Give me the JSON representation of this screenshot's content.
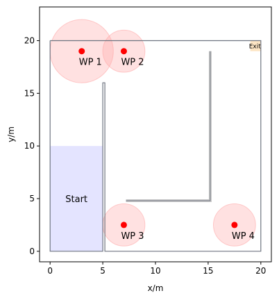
{
  "chart_data": {
    "type": "scatter",
    "xlabel": "x/m",
    "ylabel": "y/m",
    "xlim": [
      -1,
      21
    ],
    "ylim": [
      -1,
      23.2
    ],
    "xticks": [
      0,
      5,
      10,
      15,
      20
    ],
    "yticks": [
      0,
      5,
      10,
      15,
      20
    ],
    "xtick_labels": [
      "0",
      "5",
      "10",
      "15",
      "20"
    ],
    "ytick_labels": [
      "0",
      "5",
      "10",
      "15",
      "20"
    ],
    "grid": false,
    "waypoints": [
      {
        "label": "WP 1",
        "x": 3,
        "y": 19,
        "radius": 3
      },
      {
        "label": "WP 2",
        "x": 7,
        "y": 19,
        "radius": 2
      },
      {
        "label": "WP 3",
        "x": 7,
        "y": 2.5,
        "radius": 2
      },
      {
        "label": "WP 4",
        "x": 17.5,
        "y": 2.5,
        "radius": 2
      }
    ],
    "start_zone": {
      "label": "Start",
      "x0": 0,
      "y0": 0,
      "x1": 5,
      "y1": 10,
      "label_x": 2.5,
      "label_y": 5
    },
    "exit_zone": {
      "label": "Exit",
      "x0": 19,
      "y0": 19,
      "x1": 20,
      "y1": 20
    },
    "outer_wall": [
      [
        0,
        20
      ],
      [
        0,
        0
      ],
      [
        5,
        0
      ],
      [
        5,
        16
      ],
      [
        5.2,
        16
      ],
      [
        5.2,
        0
      ],
      [
        20,
        0
      ],
      [
        20,
        20
      ],
      [
        0,
        20
      ]
    ],
    "inner_wall": [
      [
        7.2,
        4.8
      ],
      [
        15.2,
        4.8
      ],
      [
        15.2,
        19
      ]
    ],
    "colors": {
      "waypoint": "#ff0000",
      "waypoint_area": "#ffaaaa",
      "start_fill": "#e4e4ff",
      "exit_fill": "#fde5c4",
      "wall": "#6e7480",
      "inner_wall": "#9a9a9a"
    }
  }
}
